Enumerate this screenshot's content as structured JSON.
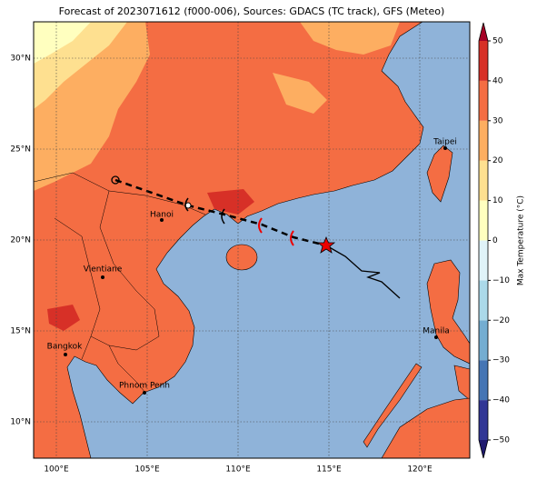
{
  "header": {
    "title": "Forecast of 2023071612 (f000-006), Sources: GDACS (TC track), GFS (Meteo)"
  },
  "map": {
    "lon_range": [
      98.75,
      122.75
    ],
    "lat_range": [
      8,
      32
    ],
    "lon_ticks": [
      {
        "value": 100,
        "label": "100°E"
      },
      {
        "value": 105,
        "label": "105°E"
      },
      {
        "value": 110,
        "label": "110°E"
      },
      {
        "value": 115,
        "label": "115°E"
      },
      {
        "value": 120,
        "label": "120°E"
      }
    ],
    "lat_ticks": [
      {
        "value": 10,
        "label": "10°N"
      },
      {
        "value": 15,
        "label": "15°N"
      },
      {
        "value": 20,
        "label": "20°N"
      },
      {
        "value": 25,
        "label": "25°N"
      },
      {
        "value": 30,
        "label": "30°N"
      }
    ],
    "cities": [
      "Taipei",
      "Hanoi",
      "Vientiane",
      "Bangkok",
      "Manila",
      "Phnom Penh"
    ]
  },
  "colorbar": {
    "label": "Max Temperature (°C)",
    "range": [
      -50,
      50
    ],
    "ticks": [
      {
        "value": -50,
        "label": "−50"
      },
      {
        "value": -40,
        "label": "−40"
      },
      {
        "value": -30,
        "label": "−30"
      },
      {
        "value": -20,
        "label": "−20"
      },
      {
        "value": -10,
        "label": "−10"
      },
      0,
      10,
      20,
      30,
      40,
      50
    ],
    "colors": [
      "#313695",
      "#4575b4",
      "#74add1",
      "#abd9e9",
      "#e0f3f8",
      "#ffffbf",
      "#fee090",
      "#fdae61",
      "#f46d43",
      "#d73027"
    ]
  }
}
